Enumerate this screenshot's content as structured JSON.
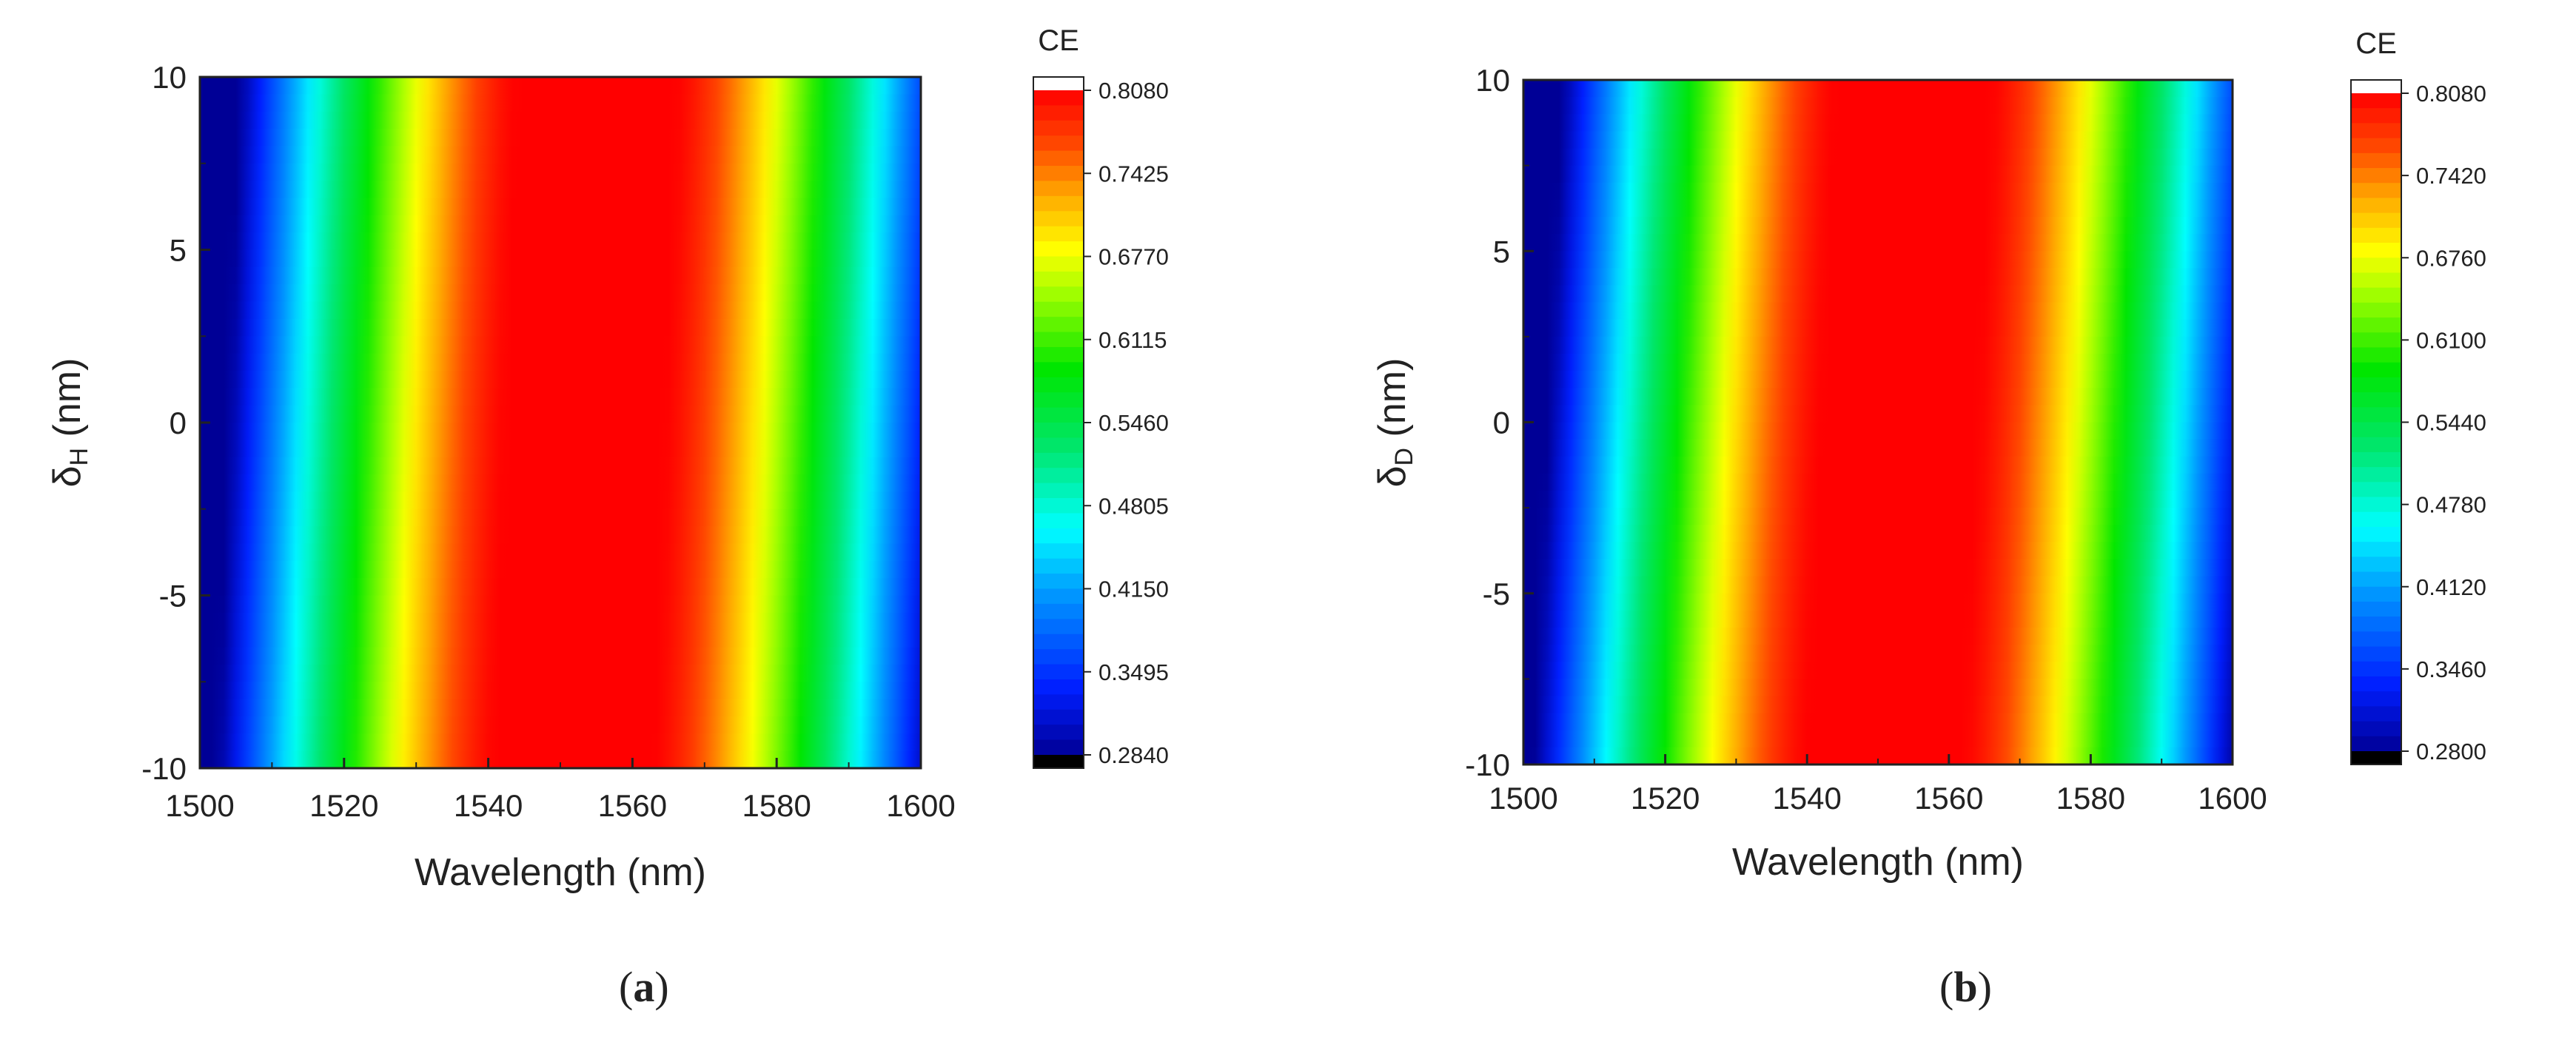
{
  "chart_data": [
    {
      "type": "heatmap",
      "panel_label": "a",
      "xlabel": "Wavelength (nm)",
      "ylabel_main": "δ",
      "ylabel_sub": "H",
      "ylabel_unit": " (nm)",
      "xlim": [
        1500,
        1600
      ],
      "ylim": [
        -10,
        10
      ],
      "x_ticks": [
        "1500",
        "1520",
        "1540",
        "1560",
        "1580",
        "1600"
      ],
      "y_ticks": [
        "10",
        "5",
        "0",
        "-5",
        "-10"
      ],
      "colorbar_title": "CE",
      "colorbar_ticks": [
        "0.8080",
        "0.7425",
        "0.6770",
        "0.6115",
        "0.5460",
        "0.4805",
        "0.4150",
        "0.3495",
        "0.2840"
      ],
      "z_range": [
        0.284,
        0.808
      ],
      "peak_wavelength_at_y_max": 1555,
      "peak_wavelength_at_y_min": 1552,
      "band_halfwidth_nm": 50,
      "colors": [
        "#000000",
        "#0000ff",
        "#00ffff",
        "#00ff00",
        "#ffff00",
        "#ff8000",
        "#ff0000",
        "#ffffff"
      ]
    },
    {
      "type": "heatmap",
      "panel_label": "b",
      "xlabel": "Wavelength (nm)",
      "ylabel_main": "δ",
      "ylabel_sub": "D",
      "ylabel_unit": " (nm)",
      "xlim": [
        1500,
        1600
      ],
      "ylim": [
        -10,
        10
      ],
      "x_ticks": [
        "1500",
        "1520",
        "1540",
        "1560",
        "1580",
        "1600"
      ],
      "y_ticks": [
        "10",
        "5",
        "0",
        "-5",
        "-10"
      ],
      "colorbar_title": "CE",
      "colorbar_ticks": [
        "0.8080",
        "0.7420",
        "0.6760",
        "0.6100",
        "0.5440",
        "0.4780",
        "0.4120",
        "0.3460",
        "0.2800"
      ],
      "z_range": [
        0.28,
        0.808
      ],
      "peak_wavelength_at_y_max": 1555,
      "peak_wavelength_at_y_min": 1551,
      "band_halfwidth_nm": 50,
      "colors": [
        "#000000",
        "#0000ff",
        "#00ffff",
        "#00ff00",
        "#ffff00",
        "#ff8000",
        "#ff0000",
        "#ffffff"
      ]
    }
  ]
}
